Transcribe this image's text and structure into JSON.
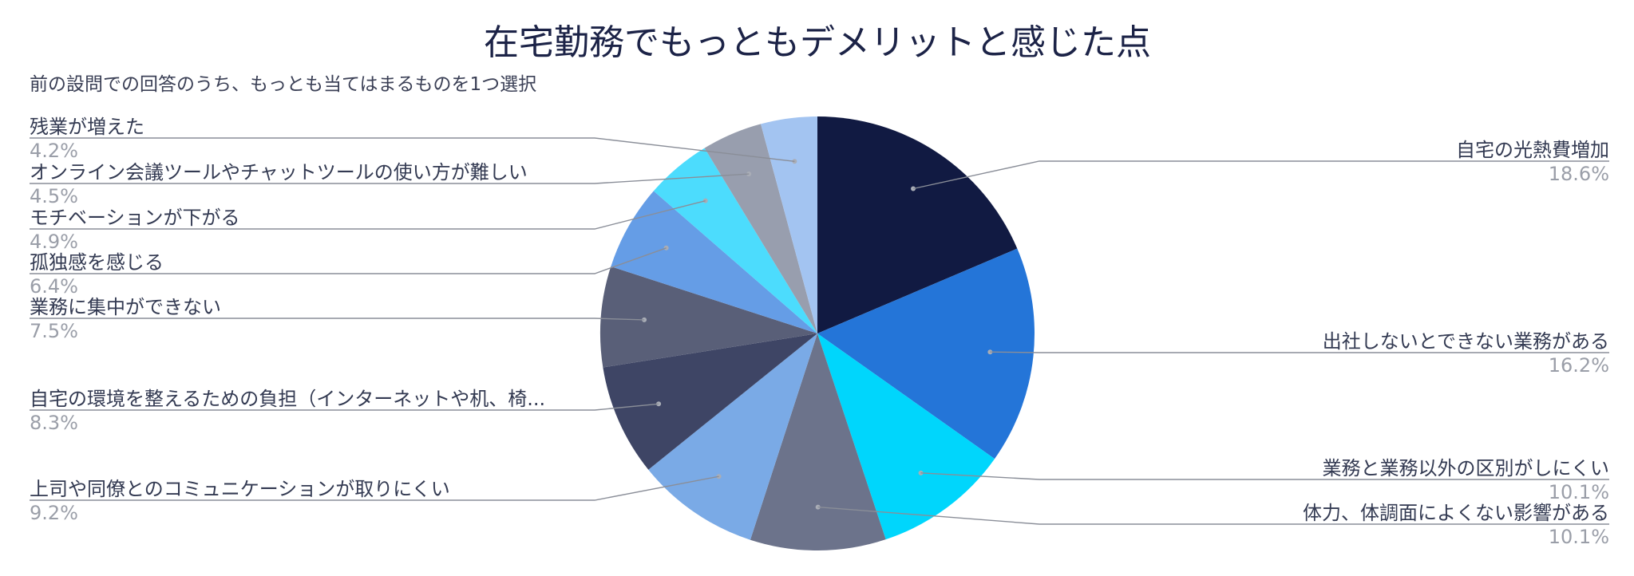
{
  "chart_data": {
    "type": "pie",
    "title": "在宅勤務でもっともデメリットと感じた点",
    "subtitle": "前の設問での回答のうち、もっとも当てはまるものを1つ選択",
    "unit": "%",
    "legend": "outside labels with leader lines",
    "slices": [
      {
        "label": "自宅の光熱費増加",
        "value": 18.6,
        "display": "18.6%",
        "color": "#111a42",
        "side": "right"
      },
      {
        "label": "出社しないとできない業務がある",
        "value": 16.2,
        "display": "16.2%",
        "color": "#2475d8",
        "side": "right"
      },
      {
        "label": "業務と業務以外の区別がしにくい",
        "value": 10.1,
        "display": "10.1%",
        "color": "#00d6fc",
        "side": "right"
      },
      {
        "label": "体力、体調面によくない影響がある",
        "value": 10.1,
        "display": "10.1%",
        "color": "#6c738b",
        "side": "right"
      },
      {
        "label": "上司や同僚とのコミュニケーションが取りにくい",
        "value": 9.2,
        "display": "9.2%",
        "color": "#7aaae6",
        "side": "left"
      },
      {
        "label": "自宅の環境を整えるための負担（インターネットや机、椅...",
        "value": 8.3,
        "display": "8.3%",
        "color": "#3e4565",
        "side": "left"
      },
      {
        "label": "業務に集中ができない",
        "value": 7.5,
        "display": "7.5%",
        "color": "#595f78",
        "side": "left"
      },
      {
        "label": "孤独感を感じる",
        "value": 6.4,
        "display": "6.4%",
        "color": "#659de6",
        "side": "left"
      },
      {
        "label": "モチベーションが下がる",
        "value": 4.9,
        "display": "4.9%",
        "color": "#4cdcfd",
        "side": "left"
      },
      {
        "label": "オンライン会議ツールやチャットツールの使い方が難しい",
        "value": 4.5,
        "display": "4.5%",
        "color": "#989eae",
        "side": "left"
      },
      {
        "label": "残業が増えた",
        "value": 4.2,
        "display": "4.2%",
        "color": "#a3c4f1",
        "side": "left"
      }
    ]
  }
}
